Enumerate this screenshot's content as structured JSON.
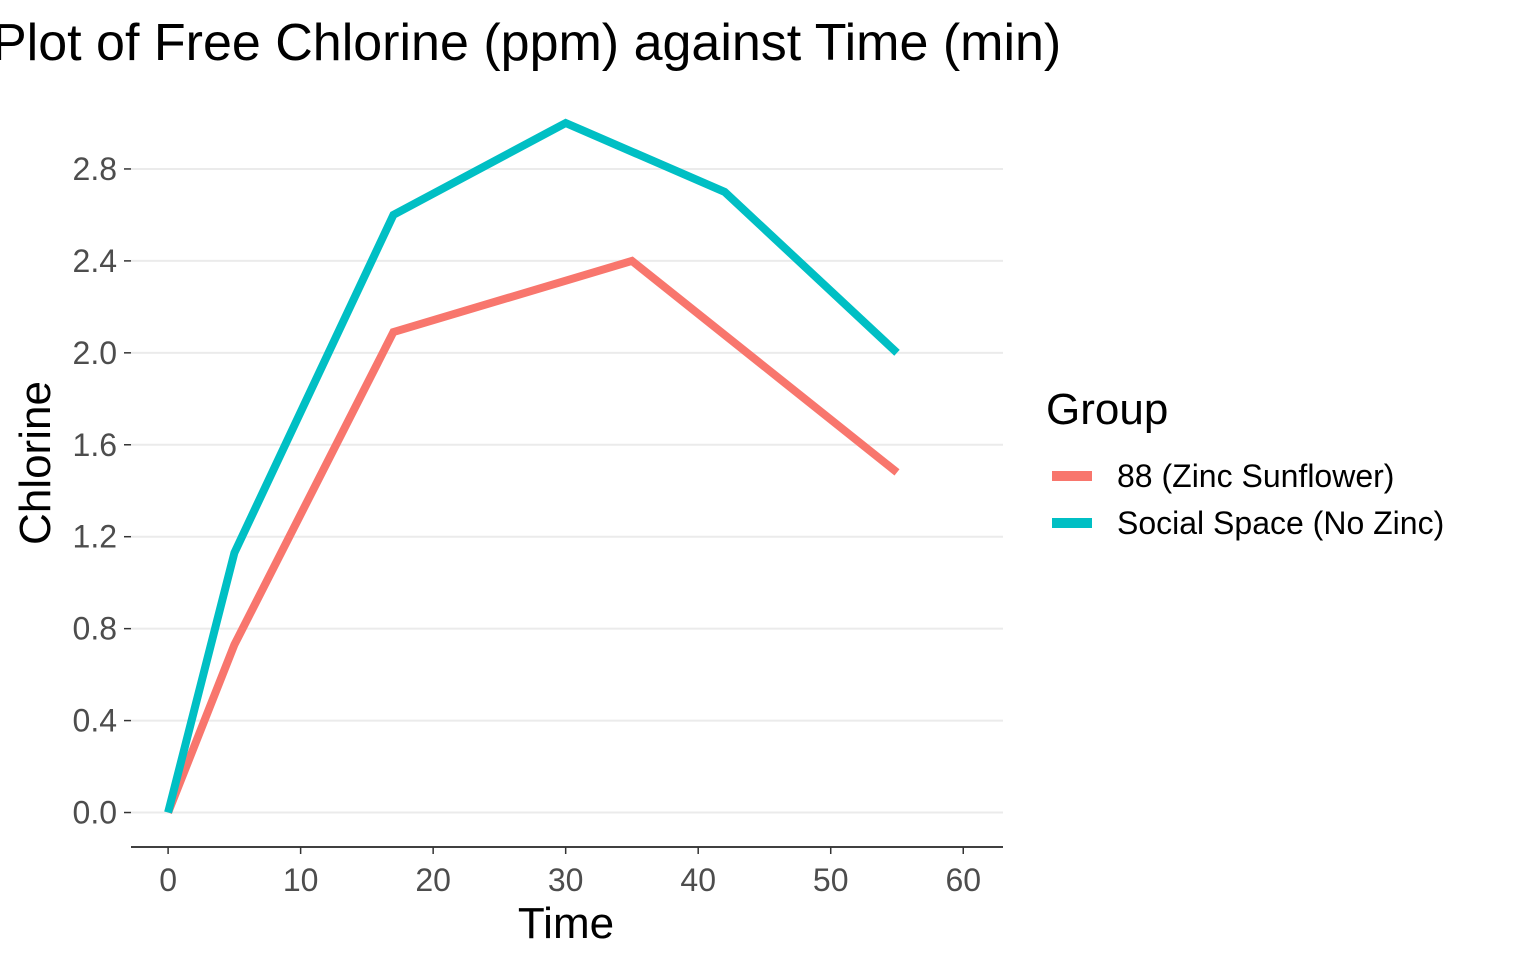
{
  "chart_data": {
    "type": "line",
    "title": "Plot of Free Chlorine (ppm) against Time (min)",
    "xlabel": "Time",
    "ylabel": "Chlorine",
    "xlim": [
      -2.8,
      63
    ],
    "ylim": [
      -0.15,
      3.1
    ],
    "xticks": [
      0,
      10,
      20,
      30,
      40,
      50,
      60
    ],
    "xtick_labels": [
      "0",
      "10",
      "20",
      "30",
      "40",
      "50",
      "60"
    ],
    "yticks": [
      0.0,
      0.4,
      0.8,
      1.2,
      1.6,
      2.0,
      2.4,
      2.8
    ],
    "ytick_labels": [
      "0.0",
      "0.4",
      "0.8",
      "1.2",
      "1.6",
      "2.0",
      "2.4",
      "2.8"
    ],
    "grid": "horizontal",
    "legend": {
      "title": "Group",
      "position": "right"
    },
    "series": [
      {
        "name": "88 (Zinc Sunflower)",
        "color": "#F8766D",
        "x": [
          0,
          5,
          17,
          35,
          55
        ],
        "y": [
          0.0,
          0.73,
          2.09,
          2.4,
          1.48
        ]
      },
      {
        "name": "Social Space (No Zinc)",
        "color": "#00BFC4",
        "x": [
          0,
          5,
          17,
          30,
          42,
          55
        ],
        "y": [
          0.0,
          1.13,
          2.6,
          3.0,
          2.7,
          2.0
        ]
      }
    ]
  }
}
